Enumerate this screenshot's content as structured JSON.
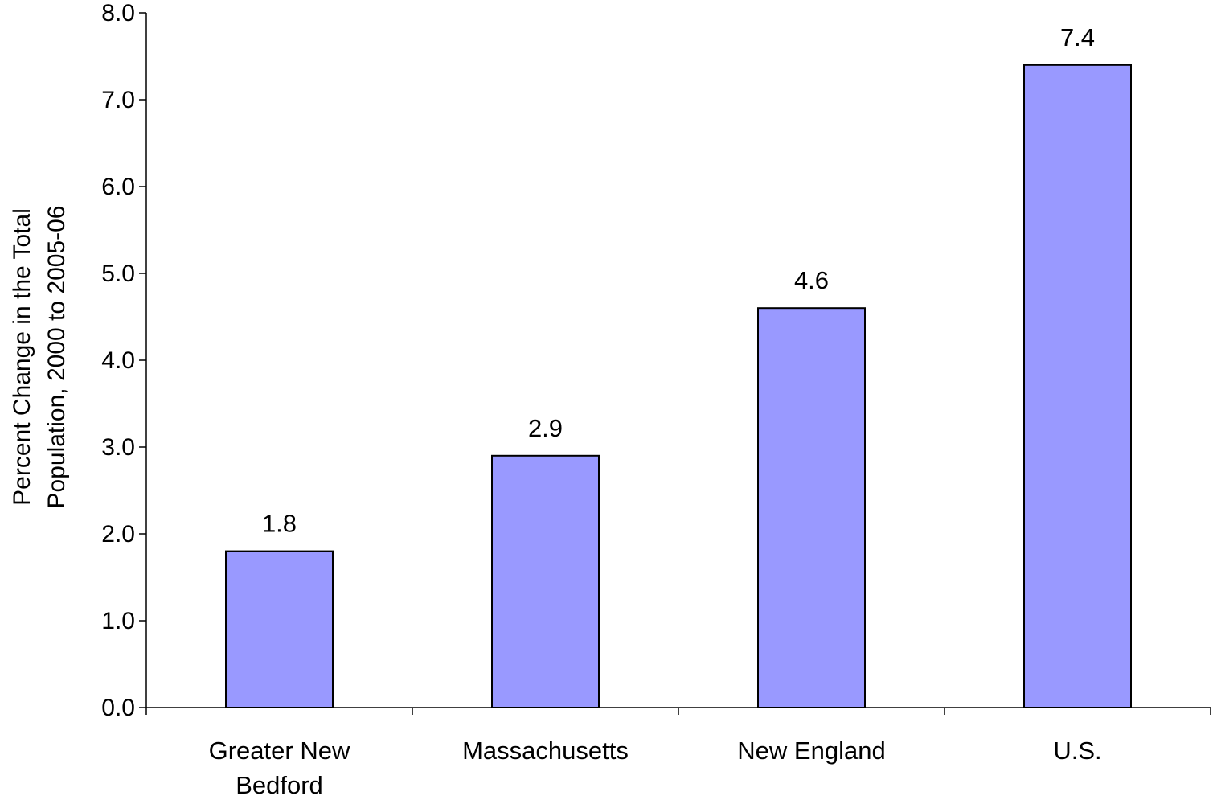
{
  "chart_data": {
    "type": "bar",
    "title": "",
    "xlabel": "",
    "ylabel_lines": [
      "Percent Change in the Total",
      "Population, 2000 to 2005-06"
    ],
    "categories": [
      {
        "lines": [
          "Greater New",
          "Bedford"
        ]
      },
      {
        "lines": [
          "Massachusetts"
        ]
      },
      {
        "lines": [
          "New England"
        ]
      },
      {
        "lines": [
          "U.S."
        ]
      }
    ],
    "values": [
      1.8,
      2.9,
      4.6,
      7.4
    ],
    "value_labels": [
      "1.8",
      "2.9",
      "4.6",
      "7.4"
    ],
    "ylim": [
      0,
      8
    ],
    "yticks": [
      0,
      1,
      2,
      3,
      4,
      5,
      6,
      7,
      8
    ],
    "ytick_labels": [
      "0.0",
      "1.0",
      "2.0",
      "3.0",
      "4.0",
      "5.0",
      "6.0",
      "7.0",
      "8.0"
    ],
    "grid": false,
    "legend": "none",
    "bar_color": "#9999ff",
    "bar_edge_color": "#000000"
  }
}
